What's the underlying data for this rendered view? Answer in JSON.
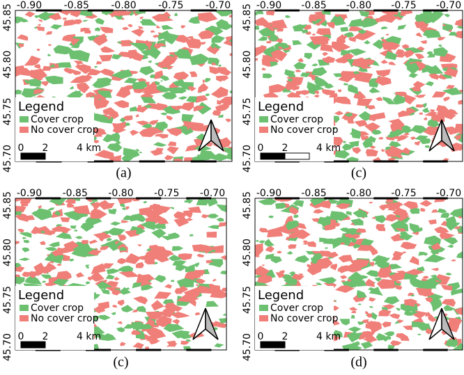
{
  "panels": [
    {
      "caption": "(a)",
      "xticks": [
        "-0.90",
        "-0.85",
        "-0.80",
        "-0.75",
        "-0.70"
      ],
      "yticks": [
        "45.85",
        "45.80",
        "45.75",
        "45.70"
      ],
      "legend": {
        "title": "Legend",
        "items": [
          {
            "label": "Cover crop",
            "color": "#6cc070"
          },
          {
            "label": "No cover crop",
            "color": "#ef7f78"
          }
        ]
      },
      "scale": [
        "0",
        "2",
        "4 km"
      ]
    },
    {
      "caption": "(c)",
      "xticks": [
        "-0.90",
        "-0.85",
        "-0.80",
        "-0.75",
        "-0.70"
      ],
      "yticks": [
        "45.85",
        "45.80",
        "45.75",
        "45.70"
      ],
      "legend": {
        "title": "Legend",
        "items": [
          {
            "label": "Cover crop",
            "color": "#6cc070"
          },
          {
            "label": "No cover crop",
            "color": "#ef7f78"
          }
        ]
      },
      "scale": [
        "0",
        "2",
        "4 km"
      ]
    },
    {
      "caption": "(c)",
      "xticks": [
        "-0.90",
        "-0.85",
        "-0.80",
        "-0.75",
        "-0.70"
      ],
      "yticks": [
        "45.85",
        "45.80",
        "45.75",
        "45.70"
      ],
      "legend": {
        "title": "Legend",
        "items": [
          {
            "label": "Cover crop",
            "color": "#6cc070"
          },
          {
            "label": "No cover crop",
            "color": "#ef7f78"
          }
        ]
      },
      "scale": [
        "0",
        "2",
        "4 km"
      ]
    },
    {
      "caption": "(d)",
      "xticks": [
        "-0.90",
        "-0.85",
        "-0.80",
        "-0.75",
        "-0.70"
      ],
      "yticks": [
        "45.85",
        "45.80",
        "45.75",
        "45.70"
      ],
      "legend": {
        "title": "Legend",
        "items": [
          {
            "label": "Cover crop",
            "color": "#6cc070"
          },
          {
            "label": "No cover crop",
            "color": "#ef7f78"
          }
        ]
      },
      "scale": [
        "0",
        "2",
        "4 km"
      ]
    }
  ]
}
